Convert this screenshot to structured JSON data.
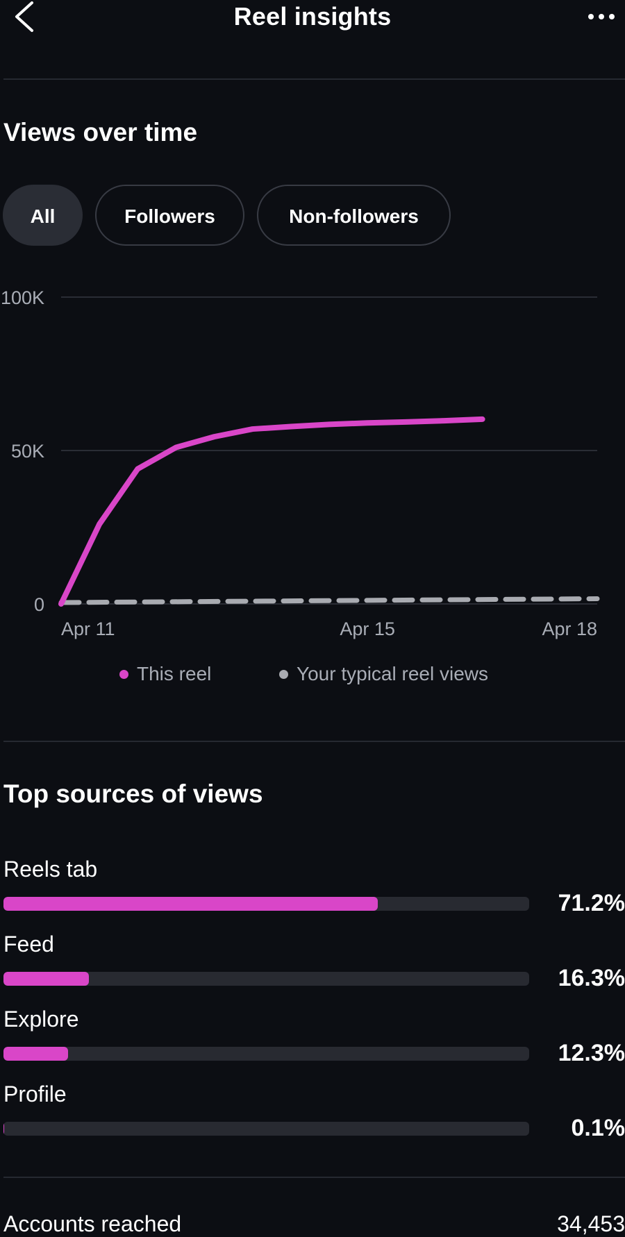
{
  "header": {
    "title": "Reel insights",
    "back_icon": "chevron-left-icon",
    "more_icon": "more-horizontal-icon"
  },
  "views_section": {
    "title": "Views over time",
    "filters": [
      {
        "label": "All",
        "active": true
      },
      {
        "label": "Followers",
        "active": false
      },
      {
        "label": "Non-followers",
        "active": false
      }
    ]
  },
  "chart_data": {
    "type": "line",
    "yticks": [
      "100K",
      "50K",
      "0"
    ],
    "ytick_values": [
      100000,
      50000,
      0
    ],
    "xticks": [
      "Apr 11",
      "Apr 15",
      "Apr 18"
    ],
    "ylim": [
      0,
      100000
    ],
    "grid": true,
    "legend_placement": "bottom",
    "series": [
      {
        "name": "This reel",
        "color": "#d946c8",
        "style": "solid",
        "x": [
          0,
          0.5,
          1,
          1.5,
          2,
          2.5,
          3,
          3.5,
          4,
          4.5,
          5,
          5.5
        ],
        "values": [
          0,
          26000,
          44000,
          51000,
          54500,
          57000,
          57800,
          58500,
          59000,
          59300,
          59700,
          60200
        ]
      },
      {
        "name": "Your typical reel views",
        "color": "#a9abb1",
        "style": "dashed",
        "x": [
          0,
          7
        ],
        "values": [
          0,
          1700
        ]
      }
    ]
  },
  "sources_section": {
    "title": "Top sources of views",
    "items": [
      {
        "label": "Reels tab",
        "percent": 71.2,
        "value_text": "71.2%"
      },
      {
        "label": "Feed",
        "percent": 16.3,
        "value_text": "16.3%"
      },
      {
        "label": "Explore",
        "percent": 12.3,
        "value_text": "12.3%"
      },
      {
        "label": "Profile",
        "percent": 0.1,
        "value_text": "0.1%"
      }
    ]
  },
  "stats": {
    "accounts_reached_label": "Accounts reached",
    "accounts_reached_value": "34,453"
  },
  "colors": {
    "background": "#0c0e13",
    "accent": "#d946c8",
    "typical_line": "#a9abb1"
  }
}
